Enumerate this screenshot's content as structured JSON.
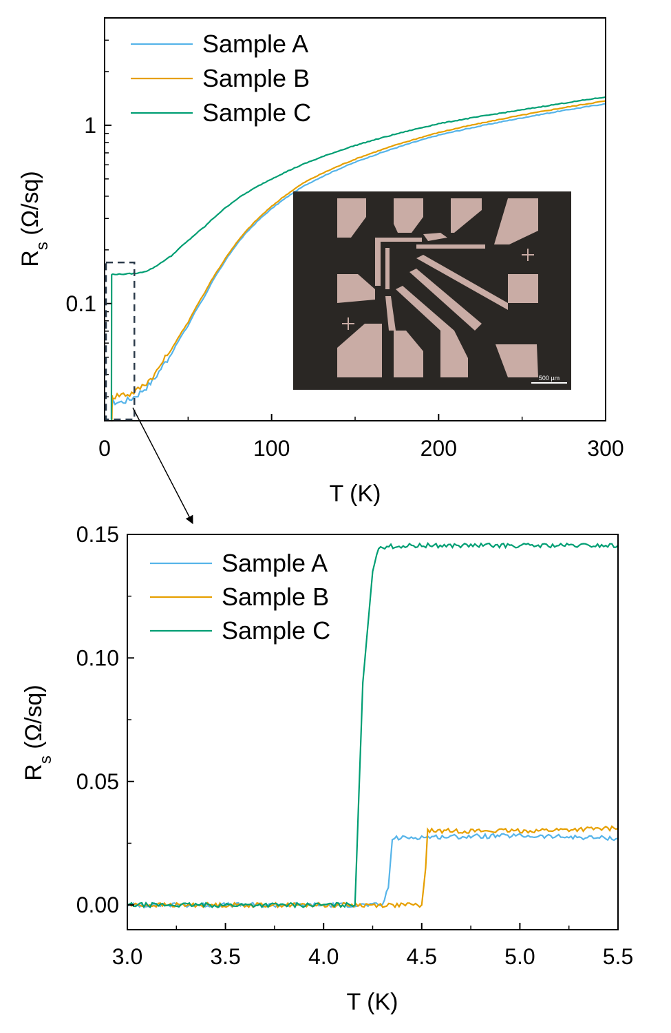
{
  "colors": {
    "sample_a": "#56B4E9",
    "sample_b": "#E69F00",
    "sample_c": "#009E73",
    "highlight_box": "#2b3a4a",
    "inset_bg": "#2a2724",
    "pad": "#c9aca5"
  },
  "chart_data": [
    {
      "type": "line",
      "title": "",
      "xlabel": "T (K)",
      "ylabel_main": "R",
      "ylabel_sub": "s",
      "ylabel_unit": " (Ω/sq)",
      "xscale": "linear",
      "yscale": "log",
      "xlim": [
        0,
        300
      ],
      "ylim": [
        0.022,
        4.0
      ],
      "xticks": [
        0,
        100,
        200,
        300
      ],
      "xtick_labels": [
        "0",
        "100",
        "200",
        "300"
      ],
      "yticks": [
        0.1,
        1
      ],
      "ytick_labels": [
        "0.1",
        "1"
      ],
      "legend": [
        "Sample A",
        "Sample B",
        "Sample C"
      ],
      "legend_position": "top-left",
      "highlight_region": {
        "x": [
          0,
          17
        ],
        "y": [
          0.022,
          0.17
        ]
      },
      "inset": "optical micrograph of patterned device",
      "inset_scale_label": "500 µm",
      "series": [
        {
          "name": "Sample A",
          "x": [
            4.1,
            4.35,
            5,
            10,
            15,
            20,
            25,
            30,
            40,
            50,
            60,
            70,
            80,
            100,
            120,
            150,
            200,
            250,
            300
          ],
          "y": [
            0.0,
            0.027,
            0.028,
            0.028,
            0.029,
            0.031,
            0.034,
            0.038,
            0.052,
            0.075,
            0.11,
            0.16,
            0.22,
            0.34,
            0.46,
            0.62,
            0.88,
            1.1,
            1.32
          ]
        },
        {
          "name": "Sample B",
          "x": [
            4.1,
            4.52,
            5,
            10,
            15,
            20,
            25,
            30,
            40,
            50,
            60,
            70,
            80,
            100,
            120,
            150,
            200,
            250,
            300
          ],
          "y": [
            0.0,
            0.03,
            0.03,
            0.031,
            0.031,
            0.033,
            0.036,
            0.04,
            0.055,
            0.078,
            0.115,
            0.165,
            0.225,
            0.35,
            0.48,
            0.645,
            0.91,
            1.14,
            1.37
          ]
        },
        {
          "name": "Sample C",
          "x": [
            4.1,
            4.2,
            5,
            10,
            15,
            20,
            25,
            30,
            40,
            50,
            60,
            70,
            80,
            100,
            120,
            150,
            200,
            250,
            300
          ],
          "y": [
            0.0,
            0.145,
            0.146,
            0.146,
            0.147,
            0.148,
            0.152,
            0.16,
            0.185,
            0.225,
            0.27,
            0.33,
            0.39,
            0.5,
            0.61,
            0.77,
            1.02,
            1.22,
            1.44
          ]
        }
      ]
    },
    {
      "type": "line",
      "title": "",
      "xlabel": "T (K)",
      "ylabel_main": "R",
      "ylabel_sub": "s",
      "ylabel_unit": " (Ω/sq)",
      "xscale": "linear",
      "yscale": "linear",
      "xlim": [
        3.0,
        5.5
      ],
      "ylim": [
        -0.01,
        0.15
      ],
      "xticks": [
        3.0,
        3.5,
        4.0,
        4.5,
        5.0,
        5.5
      ],
      "xtick_labels": [
        "3.0",
        "3.5",
        "4.0",
        "4.5",
        "5.0",
        "5.5"
      ],
      "yticks": [
        0.0,
        0.05,
        0.1,
        0.15
      ],
      "ytick_labels": [
        "0.00",
        "0.05",
        "0.10",
        "0.15"
      ],
      "legend": [
        "Sample A",
        "Sample B",
        "Sample C"
      ],
      "legend_position": "top-left",
      "series": [
        {
          "name": "Sample A",
          "x": [
            3.0,
            4.3,
            4.33,
            4.35,
            4.5,
            5.0,
            5.5
          ],
          "y": [
            0.0,
            0.0,
            0.007,
            0.027,
            0.0275,
            0.028,
            0.027
          ]
        },
        {
          "name": "Sample B",
          "x": [
            3.0,
            4.5,
            4.52,
            4.53,
            4.75,
            5.0,
            5.5
          ],
          "y": [
            0.0,
            0.0,
            0.015,
            0.03,
            0.03,
            0.03,
            0.031
          ]
        },
        {
          "name": "Sample C",
          "x": [
            3.0,
            4.16,
            4.2,
            4.25,
            4.28,
            4.5,
            5.0,
            5.5
          ],
          "y": [
            0.0,
            0.0,
            0.09,
            0.135,
            0.145,
            0.1455,
            0.1455,
            0.1455
          ]
        }
      ]
    }
  ]
}
